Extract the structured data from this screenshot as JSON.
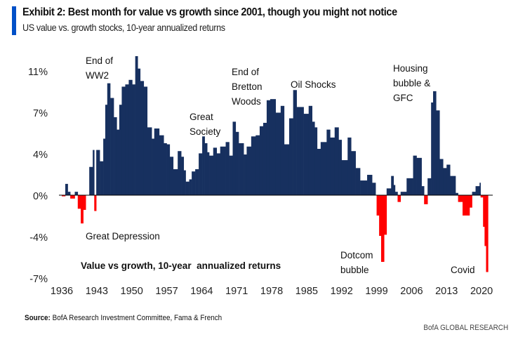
{
  "header": {
    "title": "Exhibit 2: Best month for value vs growth since 2001, though you might not notice",
    "subtitle": "US value vs. growth stocks, 10-year annualized returns",
    "accent_color": "#0050c8"
  },
  "chart_data": {
    "type": "bar",
    "title": "Value vs growth, 10-year  annualized returns",
    "xlabel": "",
    "ylabel": "",
    "xlim": [
      1936,
      2022
    ],
    "ylim": [
      -7.33,
      11.5
    ],
    "x_tick_labels": [
      "1936",
      "1943",
      "1950",
      "1957",
      "1964",
      "1971",
      "1978",
      "1985",
      "1992",
      "1999",
      "2006",
      "2013",
      "2020"
    ],
    "y_ticks": [
      {
        "value": 11,
        "label": "11%"
      },
      {
        "value": 7.33,
        "label": "7%"
      },
      {
        "value": 3.67,
        "label": "4%"
      },
      {
        "value": 0,
        "label": "0%"
      },
      {
        "value": -3.67,
        "label": "-4%"
      },
      {
        "value": -7.33,
        "label": "-7%"
      }
    ],
    "grid": false,
    "colors": {
      "positive": "#17305f",
      "negative": "#ff0000"
    },
    "points": [
      [
        1936.0,
        -0.1
      ],
      [
        1936.7,
        1.0
      ],
      [
        1937.2,
        0.3
      ],
      [
        1937.7,
        -0.3
      ],
      [
        1938.6,
        0.3
      ],
      [
        1939.2,
        -1.2
      ],
      [
        1939.8,
        -2.5
      ],
      [
        1940.3,
        -1.3
      ],
      [
        1940.8,
        0
      ],
      [
        1941.5,
        2.5
      ],
      [
        1942.2,
        4.0
      ],
      [
        1942.5,
        -1.4
      ],
      [
        1942.9,
        4.0
      ],
      [
        1943.6,
        3.0
      ],
      [
        1944.3,
        5.0
      ],
      [
        1944.7,
        8.0
      ],
      [
        1945.1,
        9.9
      ],
      [
        1945.7,
        8.6
      ],
      [
        1946.4,
        6.9
      ],
      [
        1947.0,
        5.8
      ],
      [
        1947.5,
        8.0
      ],
      [
        1948.0,
        9.6
      ],
      [
        1948.7,
        9.8
      ],
      [
        1949.4,
        10.2
      ],
      [
        1950.1,
        9.8
      ],
      [
        1950.7,
        12.3
      ],
      [
        1951.2,
        11.2
      ],
      [
        1951.7,
        10.1
      ],
      [
        1952.4,
        9.6
      ],
      [
        1953.1,
        6.0
      ],
      [
        1954.0,
        5.0
      ],
      [
        1954.5,
        5.9
      ],
      [
        1955.5,
        5.3
      ],
      [
        1956.4,
        4.6
      ],
      [
        1957.0,
        4.5
      ],
      [
        1957.6,
        3.4
      ],
      [
        1958.3,
        2.3
      ],
      [
        1959.2,
        3.9
      ],
      [
        1959.9,
        3.4
      ],
      [
        1960.4,
        2.2
      ],
      [
        1960.8,
        1.2
      ],
      [
        1961.5,
        1.4
      ],
      [
        1962.0,
        2.1
      ],
      [
        1962.7,
        2.3
      ],
      [
        1963.4,
        3.7
      ],
      [
        1964.1,
        5.2
      ],
      [
        1964.6,
        4.6
      ],
      [
        1965.1,
        3.8
      ],
      [
        1965.5,
        3.5
      ],
      [
        1966.3,
        4.2
      ],
      [
        1967.0,
        3.7
      ],
      [
        1967.7,
        4.3
      ],
      [
        1968.8,
        4.7
      ],
      [
        1969.5,
        3.5
      ],
      [
        1970.2,
        6.5
      ],
      [
        1970.8,
        5.6
      ],
      [
        1971.4,
        4.6
      ],
      [
        1972.4,
        3.6
      ],
      [
        1973.0,
        4.3
      ],
      [
        1973.9,
        5.2
      ],
      [
        1974.8,
        5.3
      ],
      [
        1975.6,
        6.1
      ],
      [
        1976.3,
        6.4
      ],
      [
        1977.0,
        8.4
      ],
      [
        1977.7,
        8.5
      ],
      [
        1978.8,
        7.3
      ],
      [
        1979.8,
        7.9
      ],
      [
        1980.5,
        4.5
      ],
      [
        1981.5,
        6.8
      ],
      [
        1982.3,
        9.3
      ],
      [
        1983.0,
        7.8
      ],
      [
        1983.8,
        7.8
      ],
      [
        1984.4,
        7.2
      ],
      [
        1985.4,
        7.9
      ],
      [
        1986.1,
        6.5
      ],
      [
        1986.6,
        6.0
      ],
      [
        1987.1,
        4.1
      ],
      [
        1987.8,
        4.7
      ],
      [
        1989.0,
        5.8
      ],
      [
        1989.7,
        5.1
      ],
      [
        1990.6,
        6.0
      ],
      [
        1991.4,
        4.9
      ],
      [
        1992.0,
        3.1
      ],
      [
        1993.2,
        5.1
      ],
      [
        1993.9,
        3.9
      ],
      [
        1994.8,
        2.4
      ],
      [
        1995.7,
        1.3
      ],
      [
        1997.1,
        1.8
      ],
      [
        1998.1,
        1.1
      ],
      [
        1998.8,
        0
      ],
      [
        1999.0,
        -1.8
      ],
      [
        1999.5,
        -3.6
      ],
      [
        1999.9,
        -5.9
      ],
      [
        2000.5,
        -3.5
      ],
      [
        2001.0,
        0.6
      ],
      [
        2001.9,
        1.7
      ],
      [
        2002.4,
        0.9
      ],
      [
        2002.7,
        0.3
      ],
      [
        2003.2,
        -0.6
      ],
      [
        2003.8,
        0.3
      ],
      [
        2005.0,
        1.5
      ],
      [
        2006.3,
        3.5
      ],
      [
        2007.0,
        3.3
      ],
      [
        2008.0,
        0.8
      ],
      [
        2008.5,
        -0.8
      ],
      [
        2009.2,
        1.5
      ],
      [
        2009.9,
        8.2
      ],
      [
        2010.3,
        9.2
      ],
      [
        2010.9,
        7.5
      ],
      [
        2011.6,
        3.2
      ],
      [
        2012.3,
        2.4
      ],
      [
        2013.0,
        2.7
      ],
      [
        2013.7,
        1.7
      ],
      [
        2014.8,
        0.2
      ],
      [
        2015.3,
        -0.6
      ],
      [
        2016.2,
        -1.8
      ],
      [
        2016.9,
        -1.8
      ],
      [
        2017.6,
        -1.1
      ],
      [
        2018.1,
        0.3
      ],
      [
        2018.8,
        0.8
      ],
      [
        2019.6,
        1.1
      ],
      [
        2019.8,
        -0.2
      ],
      [
        2020.3,
        -2.8
      ],
      [
        2020.6,
        -4.5
      ],
      [
        2020.9,
        -6.8
      ],
      [
        2021.3,
        0
      ]
    ],
    "annotations": [
      "End of\nWW2",
      "Great\nSociety",
      "End of\nBretton\nWoods",
      "Oil Shocks",
      "Housing\nbubble &\nGFC",
      "Great Depression",
      "Dotcom\nbubble",
      "Covid"
    ]
  },
  "footer": {
    "source_label": "Source:",
    "source_text": "BofA Research Investment Committee, Fama & French",
    "brand": "BofA GLOBAL RESEARCH"
  }
}
